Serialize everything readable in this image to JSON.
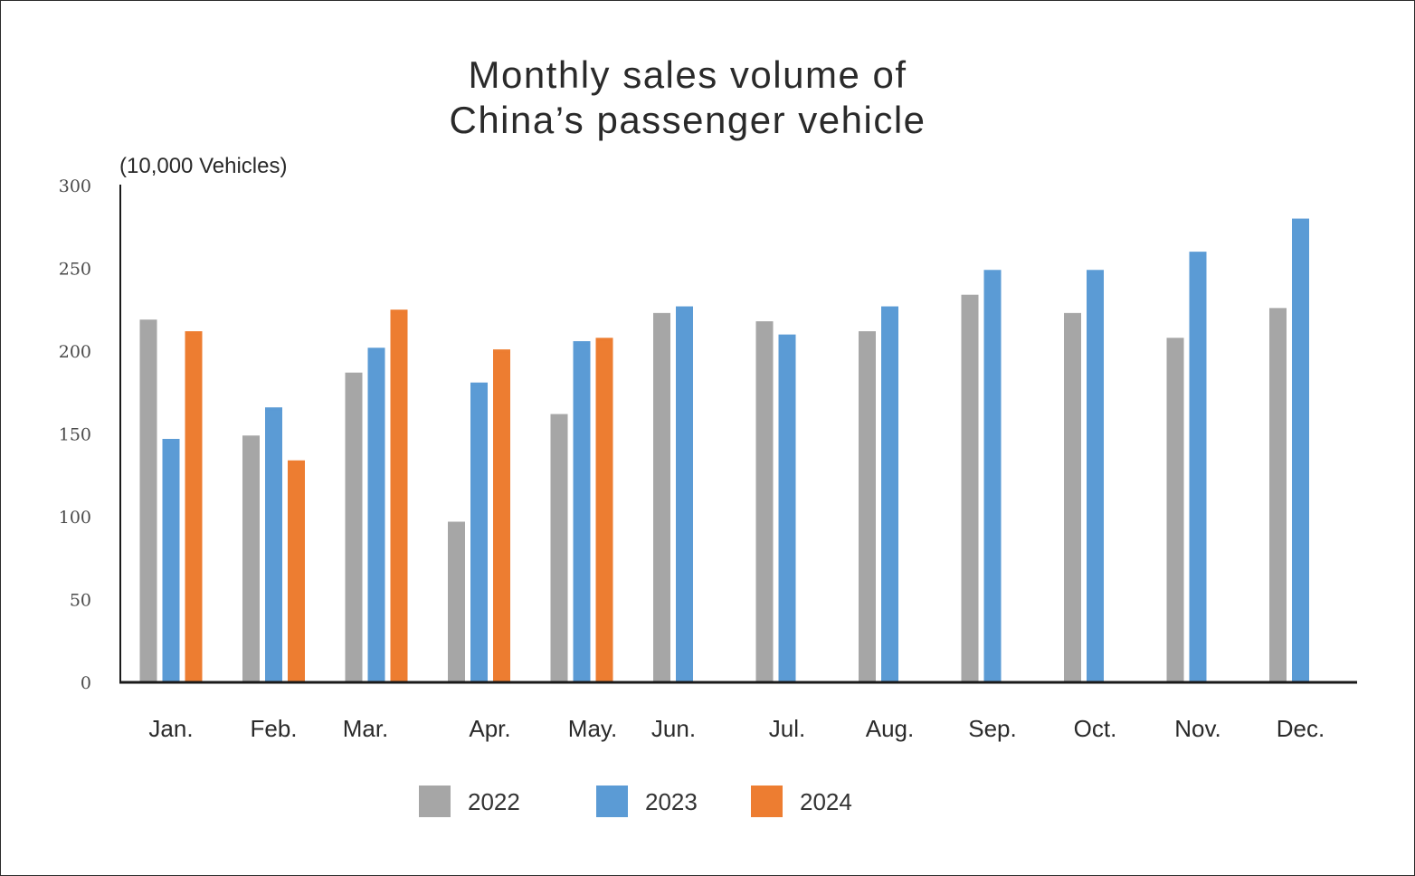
{
  "chart_data": {
    "type": "bar",
    "title_lines": [
      "Monthly sales volume of",
      "China’s passenger vehicle"
    ],
    "unit_label": "(10,000 Vehicles)",
    "xlabel": "",
    "ylabel": "",
    "ylim": [
      0,
      300
    ],
    "yticks": [
      0,
      50,
      100,
      150,
      200,
      250,
      300
    ],
    "grid": false,
    "legend_position": "bottom",
    "categories": [
      "Jan.",
      "Feb.",
      "Mar.",
      "Apr.",
      "May.",
      "Jun.",
      "Jul.",
      "Aug.",
      "Sep.",
      "Oct.",
      "Nov.",
      "Dec."
    ],
    "series": [
      {
        "name": "2022",
        "color": "#a6a6a6",
        "values": [
          219,
          149,
          187,
          97,
          162,
          223,
          218,
          212,
          234,
          223,
          208,
          226
        ]
      },
      {
        "name": "2023",
        "color": "#5b9bd5",
        "values": [
          147,
          166,
          202,
          181,
          206,
          227,
          210,
          227,
          249,
          249,
          260,
          280
        ]
      },
      {
        "name": "2024",
        "color": "#ed7d31",
        "values": [
          212,
          134,
          225,
          201,
          208,
          null,
          null,
          null,
          null,
          null,
          null,
          null
        ]
      }
    ]
  }
}
